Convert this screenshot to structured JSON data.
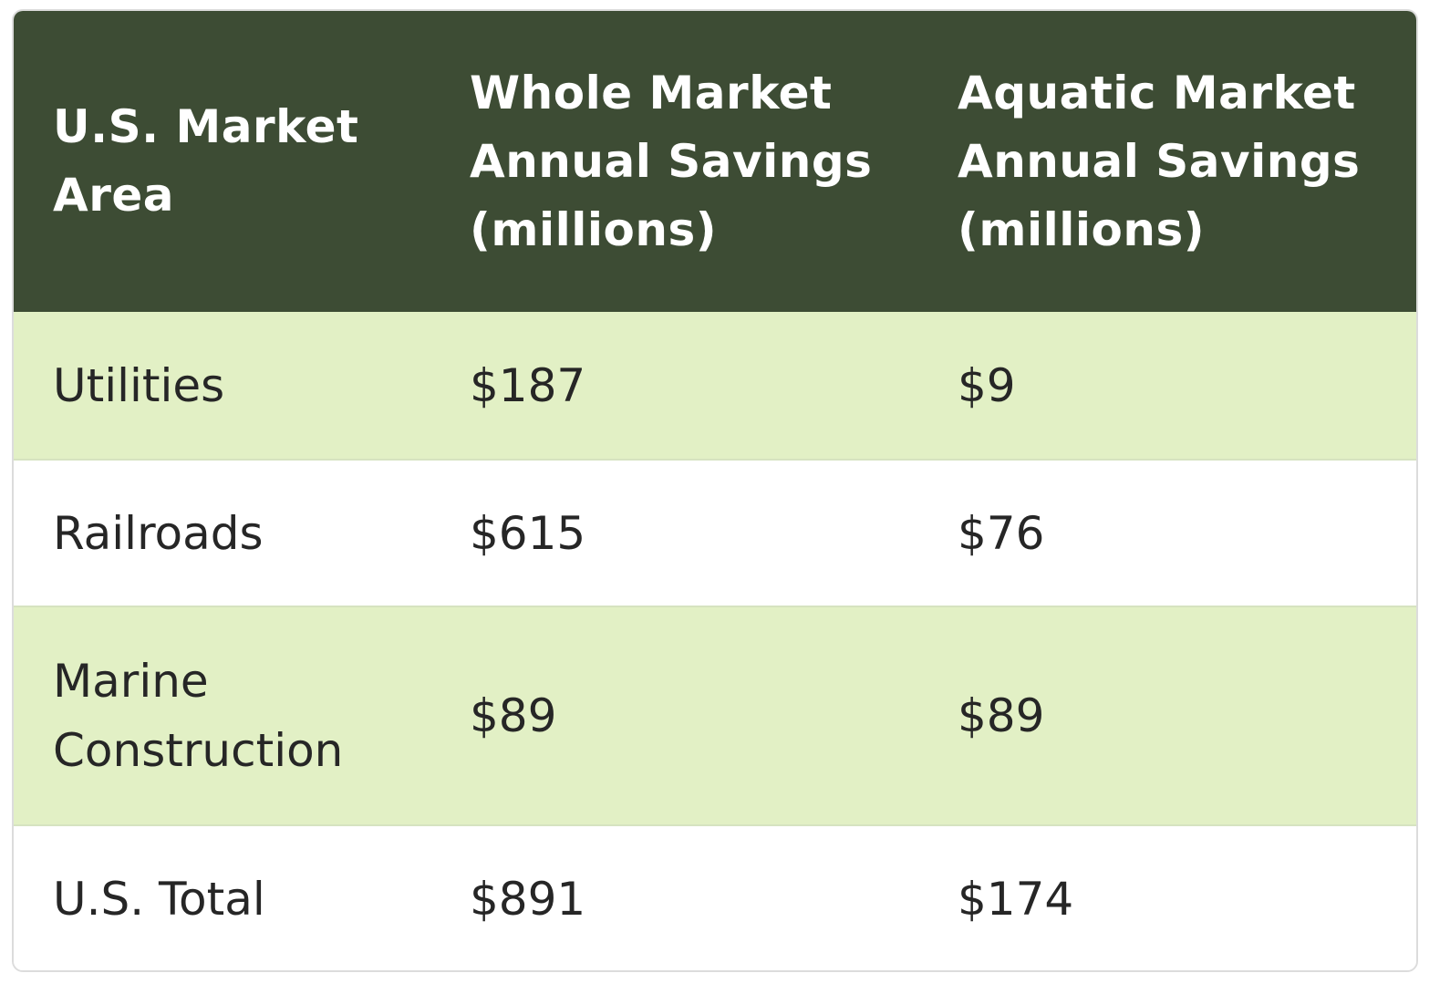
{
  "table": {
    "headers": [
      "U.S. Market Area",
      "Whole Market Annual Savings (millions)",
      "Aquatic Market Annual Savings (millions)"
    ],
    "rows": [
      [
        "Utilities",
        "$187",
        "$9"
      ],
      [
        "Railroads",
        "$615",
        "$76"
      ],
      [
        "Marine Construction",
        "$89",
        "$89"
      ],
      [
        "U.S. Total",
        "$891",
        "$174"
      ]
    ]
  },
  "colors": {
    "header_bg": "#3d4c34",
    "shaded_row_bg": "#e2f0c5",
    "plain_row_bg": "#ffffff",
    "header_text": "#ffffff",
    "body_text": "#262626"
  }
}
